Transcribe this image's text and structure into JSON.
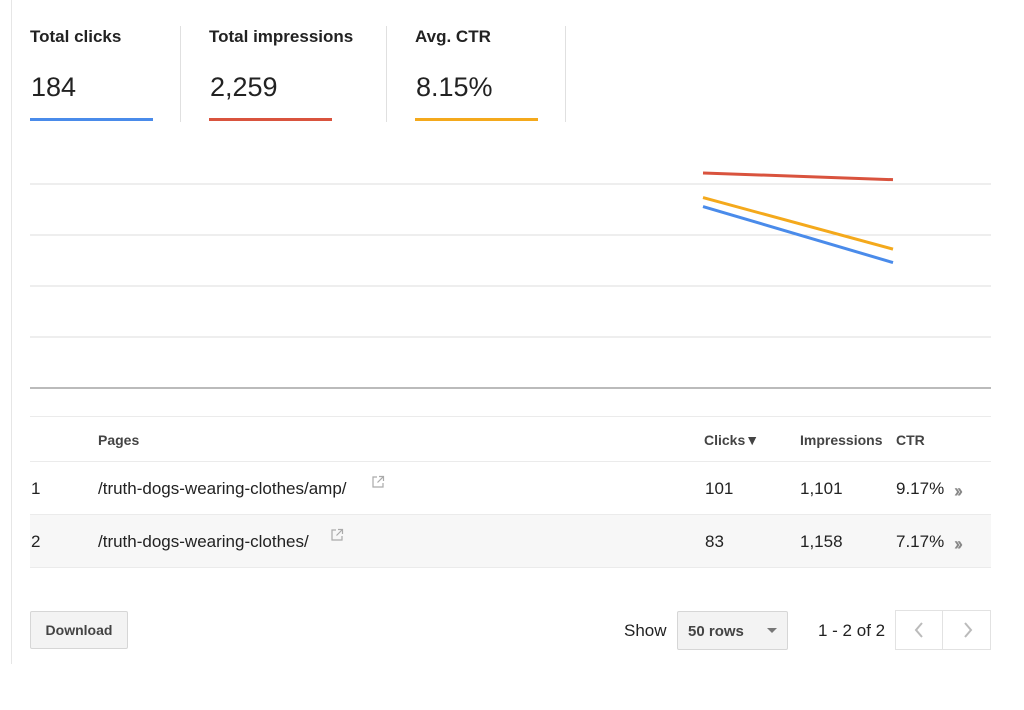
{
  "metrics": [
    {
      "label": "Total clicks",
      "value": "184",
      "color": "#4a8bea"
    },
    {
      "label": "Total impressions",
      "value": "2,259",
      "color": "#d9533e"
    },
    {
      "label": "Avg. CTR",
      "value": "8.15%",
      "color": "#f4a91c"
    }
  ],
  "chart_data": {
    "type": "line",
    "title": "",
    "xlabel": "",
    "ylabel": "",
    "grid": true,
    "x": [
      1,
      2
    ],
    "series": [
      {
        "name": "Total impressions",
        "color": "#d9533e",
        "values": [
          0.96,
          0.93
        ]
      },
      {
        "name": "Avg. CTR",
        "color": "#f4a91c",
        "values": [
          0.85,
          0.62
        ]
      },
      {
        "name": "Total clicks",
        "color": "#4a8bea",
        "values": [
          0.81,
          0.56
        ]
      }
    ],
    "ylim": [
      0,
      1
    ]
  },
  "table": {
    "headers": {
      "pages": "Pages",
      "clicks": "Clicks▼",
      "impressions": "Impressions",
      "ctr": "CTR"
    },
    "rows": [
      {
        "num": "1",
        "page": "/truth-dogs-wearing-clothes/amp/",
        "clicks": "101",
        "impressions": "1,101",
        "ctr": "9.17%"
      },
      {
        "num": "2",
        "page": "/truth-dogs-wearing-clothes/",
        "clicks": "83",
        "impressions": "1,158",
        "ctr": "7.17%"
      }
    ]
  },
  "footer": {
    "download_label": "Download",
    "show_label": "Show",
    "rows_value": "50 rows",
    "range_text": "1 - 2 of 2"
  }
}
